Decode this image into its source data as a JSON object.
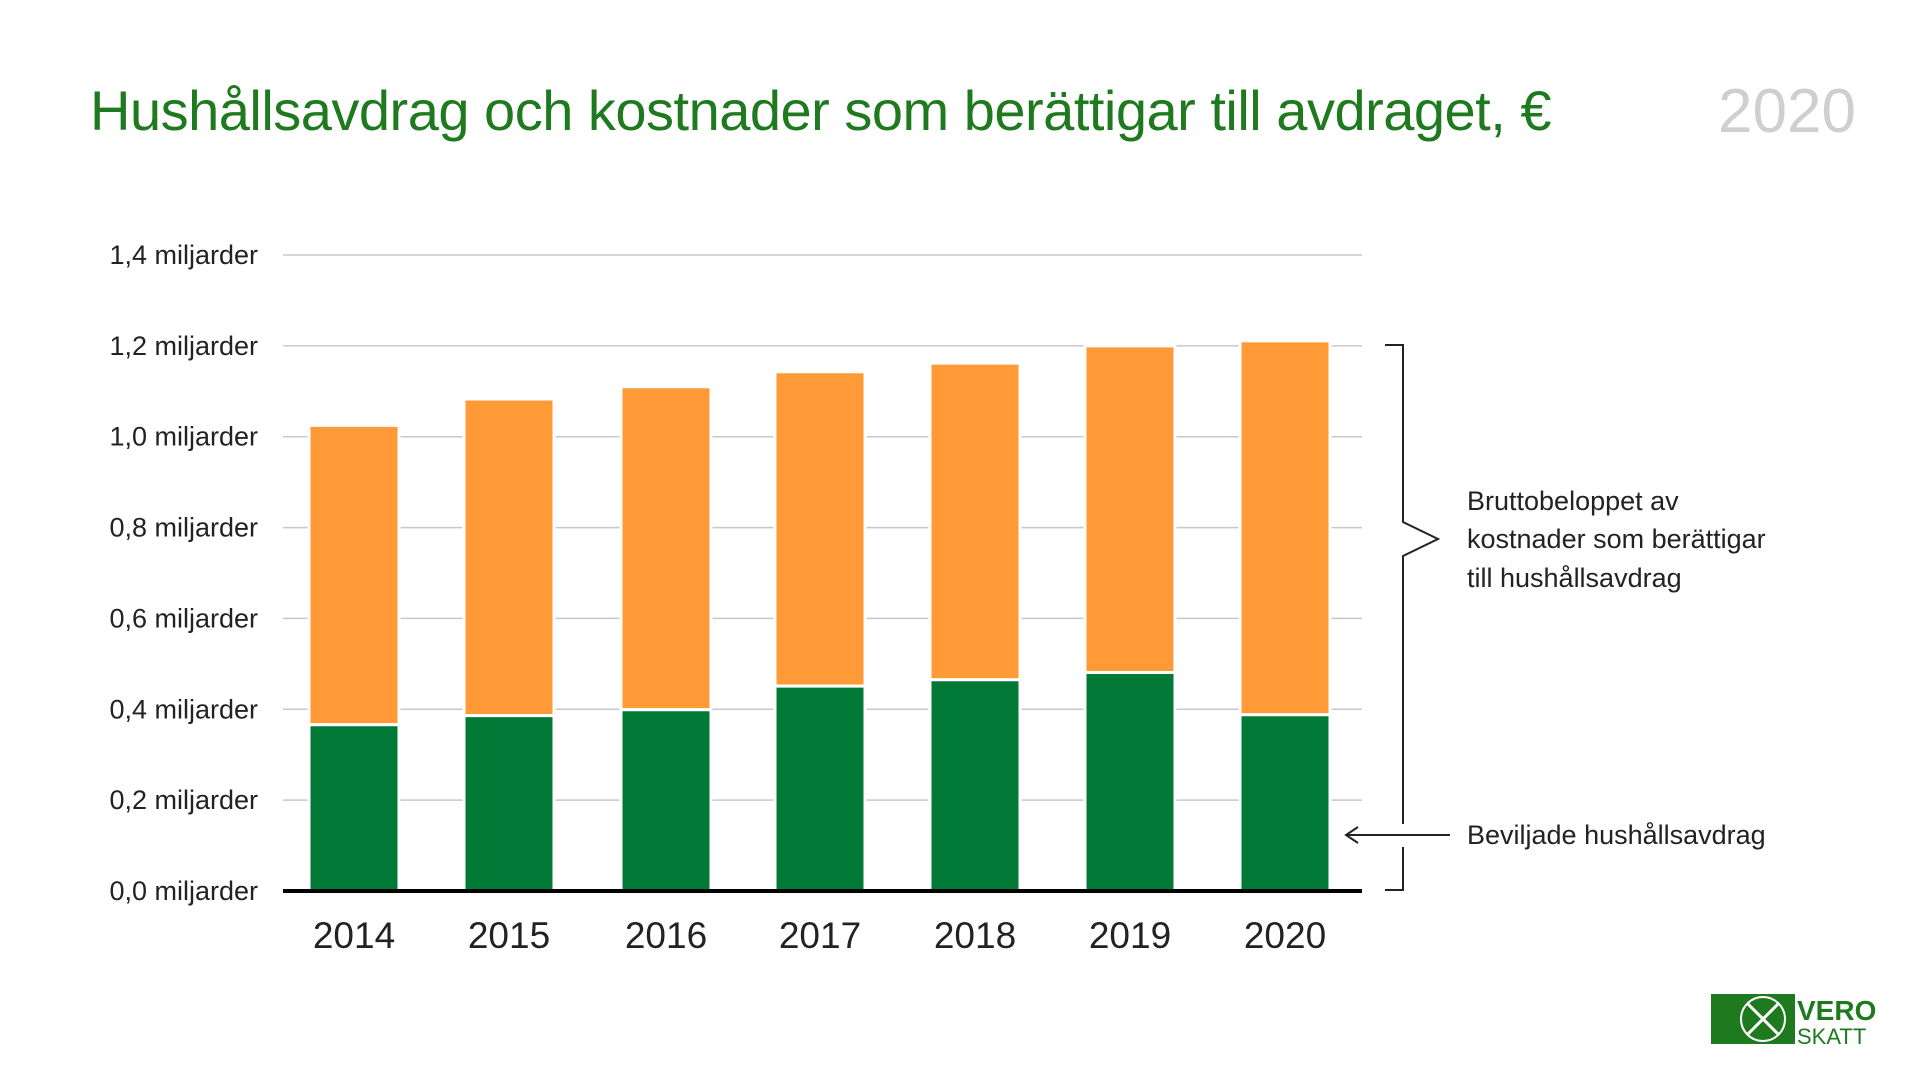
{
  "header": {
    "title": "Hushållsavdrag och kostnader som berättigar till avdraget, €",
    "year": "2020"
  },
  "chart_data": {
    "type": "bar",
    "stacked": true,
    "categories": [
      "2014",
      "2015",
      "2016",
      "2017",
      "2018",
      "2019",
      "2020"
    ],
    "series": [
      {
        "name": "Beviljade hushållsavdrag",
        "color": "#007a36",
        "values": [
          0.366,
          0.386,
          0.399,
          0.451,
          0.465,
          0.481,
          0.388
        ]
      },
      {
        "name": "Bruttobeloppet av kostnader som berättigar till hushållsavdrag",
        "color": "#ff9a36",
        "total_values": [
          1.025,
          1.083,
          1.11,
          1.143,
          1.162,
          1.2,
          1.211
        ]
      }
    ],
    "ylim": [
      0,
      1.4
    ],
    "yticks": [
      0,
      0.2,
      0.4,
      0.6,
      0.8,
      1.0,
      1.2,
      1.4
    ],
    "ytick_labels": [
      "0,0 miljarder",
      "0,2 miljarder",
      "0,4 miljarder",
      "0,6 miljarder",
      "0,8 miljarder",
      "1,0 miljarder",
      "1,2 miljarder",
      "1,4 miljarder"
    ],
    "grid": true,
    "annotations": {
      "gross": [
        "Bruttobeloppet av",
        "kostnader som berättigar",
        "till hushållsavdrag"
      ],
      "granted": "Beviljade hushållsavdrag"
    }
  },
  "logo": {
    "line1": "VERO",
    "line2": "SKATT",
    "color": "#1f7a1f"
  }
}
